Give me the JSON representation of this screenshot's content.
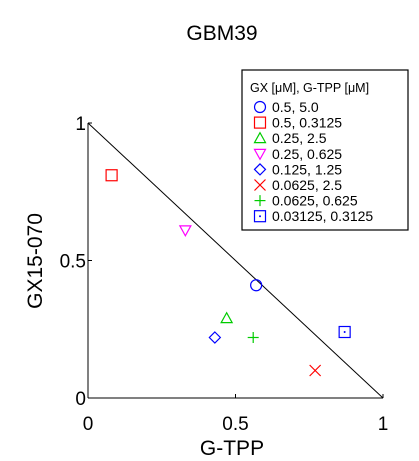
{
  "chart_data": {
    "type": "scatter",
    "title": "GBM39",
    "xlabel": "G-TPP",
    "ylabel": "GX15-070",
    "xlim": [
      0,
      1
    ],
    "ylim": [
      0,
      1
    ],
    "xticks": [
      0,
      0.5,
      1
    ],
    "xtick_labels": [
      "0",
      "0.5",
      "1"
    ],
    "yticks": [
      0,
      0.5,
      1
    ],
    "ytick_labels": [
      "0",
      "0.5",
      "1"
    ],
    "reference_line": {
      "from": [
        0,
        1
      ],
      "to": [
        1,
        0
      ],
      "color": "#000000"
    },
    "grid": false,
    "legend": {
      "title": "GX [μM], G-TPP [μM]",
      "position": "top-right"
    },
    "series": [
      {
        "name": "0.5, 5.0",
        "marker": "circle",
        "color": "#0000ff",
        "points": [
          [
            0.57,
            0.41
          ]
        ]
      },
      {
        "name": "0.5, 0.3125",
        "marker": "square",
        "color": "#ff0000",
        "points": [
          [
            0.08,
            0.81
          ]
        ]
      },
      {
        "name": "0.25, 2.5",
        "marker": "triangle-up",
        "color": "#00cc00",
        "points": [
          [
            0.47,
            0.29
          ]
        ]
      },
      {
        "name": "0.25, 0.625",
        "marker": "triangle-down",
        "color": "#ff00ff",
        "points": [
          [
            0.33,
            0.61
          ]
        ]
      },
      {
        "name": "0.125, 1.25",
        "marker": "diamond",
        "color": "#0000ff",
        "points": [
          [
            0.43,
            0.22
          ]
        ]
      },
      {
        "name": "0.0625, 2.5",
        "marker": "x",
        "color": "#ff0000",
        "points": [
          [
            0.77,
            0.1
          ]
        ]
      },
      {
        "name": "0.0625, 0.625",
        "marker": "plus",
        "color": "#00cc00",
        "points": [
          [
            0.56,
            0.22
          ]
        ]
      },
      {
        "name": "0.03125, 0.3125",
        "marker": "square-dot",
        "color": "#0000ff",
        "points": [
          [
            0.87,
            0.24
          ]
        ]
      }
    ]
  }
}
